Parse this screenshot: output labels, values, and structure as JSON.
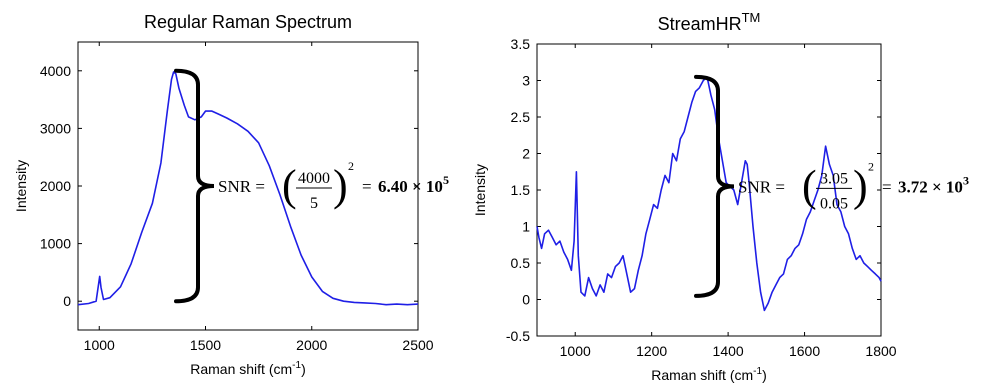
{
  "chart_data": [
    {
      "type": "line",
      "title": "Regular Raman Spectrum",
      "xlabel": "Raman shift (cm",
      "xlabel_sup": "-1",
      "xlabel_end": ")",
      "ylabel": "Intensity",
      "xlim": [
        900,
        2500
      ],
      "ylim": [
        -500,
        4500
      ],
      "x_ticks": [
        1000,
        1500,
        2000,
        2500
      ],
      "y_ticks": [
        0,
        1000,
        2000,
        3000,
        4000
      ],
      "line_color": "#1f1fe6",
      "series": [
        {
          "x": [
            900,
            950,
            985,
            995,
            1002,
            1008,
            1020,
            1050,
            1100,
            1150,
            1200,
            1250,
            1290,
            1320,
            1340,
            1350,
            1360,
            1375,
            1400,
            1420,
            1450,
            1480,
            1500,
            1530,
            1560,
            1600,
            1650,
            1700,
            1750,
            1800,
            1850,
            1900,
            1950,
            2000,
            2050,
            2100,
            2150,
            2200,
            2250,
            2300,
            2350,
            2400,
            2450,
            2500
          ],
          "values": [
            -60,
            -40,
            0,
            250,
            430,
            240,
            30,
            60,
            250,
            650,
            1200,
            1700,
            2400,
            3300,
            3850,
            3980,
            3950,
            3700,
            3400,
            3200,
            3150,
            3200,
            3300,
            3300,
            3250,
            3180,
            3080,
            2950,
            2750,
            2350,
            1850,
            1300,
            800,
            420,
            170,
            50,
            0,
            -20,
            -30,
            -40,
            -60,
            -50,
            -60,
            -50
          ]
        }
      ],
      "bracket": {
        "label_parts": [
          "SNR = ",
          "4000",
          "5",
          "2",
          "= ",
          "6.40",
          " × ",
          "10",
          "5"
        ],
        "from": 0,
        "to": 4000
      }
    },
    {
      "type": "line",
      "title": "StreamHR",
      "title_sup": "TM",
      "xlabel": "Raman shift (cm",
      "xlabel_sup": "-1",
      "xlabel_end": ")",
      "ylabel": "Intensity",
      "xlim": [
        900,
        1800
      ],
      "ylim": [
        -0.5,
        3.5
      ],
      "x_ticks": [
        1000,
        1200,
        1400,
        1600,
        1800
      ],
      "y_ticks": [
        -0.5,
        0,
        0.5,
        1,
        1.5,
        2,
        2.5,
        3,
        3.5
      ],
      "line_color": "#1f1fe6",
      "series": [
        {
          "x": [
            900,
            905,
            912,
            920,
            930,
            940,
            950,
            960,
            970,
            980,
            990,
            997,
            1003,
            1008,
            1015,
            1025,
            1035,
            1045,
            1055,
            1065,
            1075,
            1085,
            1095,
            1105,
            1115,
            1125,
            1135,
            1145,
            1155,
            1165,
            1175,
            1185,
            1195,
            1205,
            1215,
            1225,
            1235,
            1245,
            1255,
            1265,
            1275,
            1285,
            1295,
            1305,
            1315,
            1325,
            1335,
            1345,
            1355,
            1365,
            1375,
            1385,
            1395,
            1405,
            1415,
            1425,
            1435,
            1445,
            1450,
            1455,
            1465,
            1475,
            1485,
            1495,
            1505,
            1515,
            1525,
            1535,
            1545,
            1555,
            1565,
            1575,
            1585,
            1595,
            1605,
            1615,
            1625,
            1635,
            1645,
            1655,
            1665,
            1675,
            1685,
            1695,
            1705,
            1715,
            1725,
            1735,
            1745,
            1755,
            1765,
            1775,
            1785,
            1795,
            1800
          ],
          "values": [
            1.0,
            0.85,
            0.7,
            0.9,
            0.95,
            0.85,
            0.75,
            0.8,
            0.65,
            0.55,
            0.4,
            0.8,
            1.75,
            0.6,
            0.1,
            0.05,
            0.3,
            0.15,
            0.05,
            0.2,
            0.1,
            0.35,
            0.3,
            0.45,
            0.5,
            0.6,
            0.35,
            0.1,
            0.15,
            0.4,
            0.6,
            0.9,
            1.1,
            1.3,
            1.25,
            1.5,
            1.7,
            1.6,
            2.0,
            1.9,
            2.2,
            2.3,
            2.5,
            2.7,
            2.85,
            2.9,
            3.0,
            3.05,
            2.8,
            2.6,
            2.2,
            1.9,
            1.6,
            1.55,
            1.5,
            1.3,
            1.6,
            1.9,
            1.85,
            1.6,
            1.0,
            0.5,
            0.1,
            -0.15,
            -0.05,
            0.1,
            0.2,
            0.3,
            0.35,
            0.55,
            0.6,
            0.7,
            0.75,
            0.9,
            1.1,
            1.2,
            1.35,
            1.5,
            1.7,
            2.1,
            1.85,
            1.7,
            1.3,
            1.2,
            1.0,
            0.9,
            0.7,
            0.55,
            0.6,
            0.5,
            0.45,
            0.4,
            0.35,
            0.3,
            0.25
          ]
        }
      ],
      "bracket": {
        "label_parts": [
          "SNR = ",
          "3.05",
          "0.05",
          "2",
          "= ",
          "3.72",
          " × ",
          "10",
          "3"
        ],
        "from": 0.05,
        "to": 3.05
      }
    }
  ]
}
